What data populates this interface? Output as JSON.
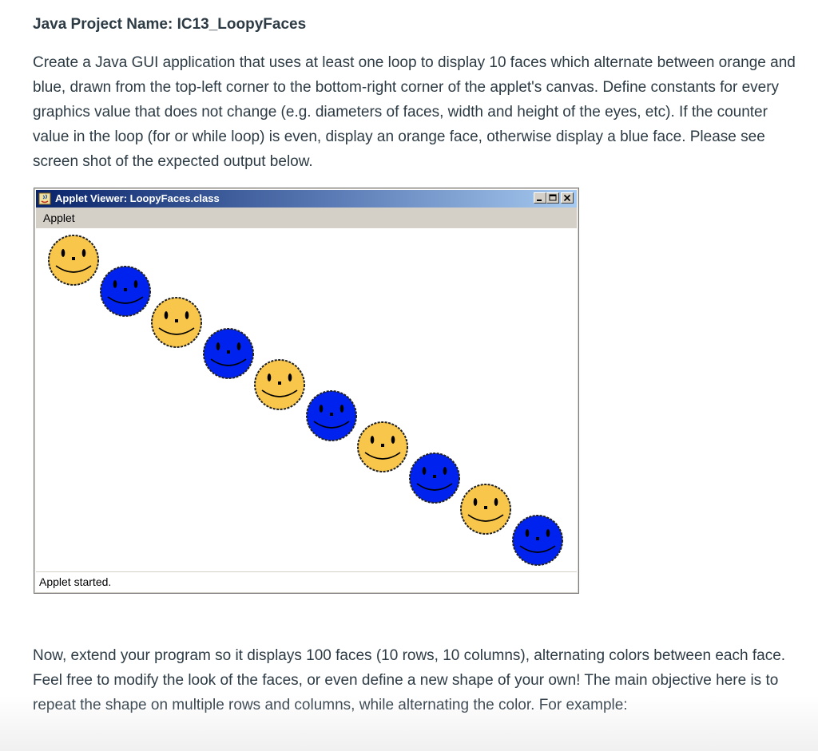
{
  "heading": {
    "label": "Java Project Name:",
    "project": "IC13_LoopyFaces"
  },
  "intro": "Create a Java GUI application that uses at least one loop to display 10 faces which alternate between orange and blue, drawn from the top-left corner to the bottom-right corner of the applet's canvas.  Define constants for every graphics value that does not change (e.g. diameters of faces, width and height of the eyes, etc).  If the counter value in the loop (for or while loop) is even, display an orange face, otherwise display a blue face.  Please see screen shot of the expected output below.",
  "applet": {
    "title": "Applet Viewer: LoopyFaces.class",
    "menu": "Applet",
    "status": "Applet started.",
    "face_count": 10,
    "colors": {
      "orange": "#f8c64a",
      "blue": "#0022ee",
      "outline": "#222222"
    }
  },
  "extension": "Now, extend your program so it displays 100 faces (10 rows, 10 columns), alternating colors between each face.  Feel free to modify the look of the faces, or even define a new shape of your own!  The main objective here is to repeat the shape on multiple rows and columns, while alternating the color.  For example:"
}
